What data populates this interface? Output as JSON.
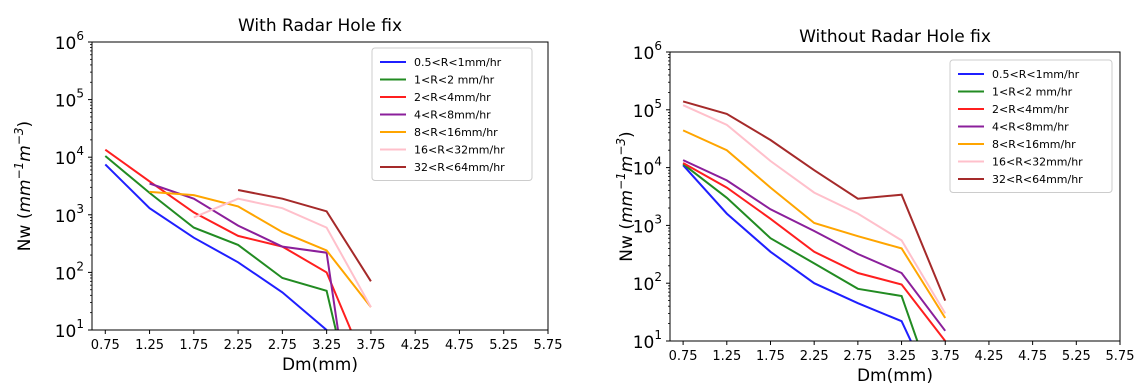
{
  "chart_data": [
    {
      "type": "line",
      "title": "With Radar Hole fix",
      "xlabel": "Dm(mm)",
      "ylabel_prefix": "Nw (",
      "ylabel_math": "mm",
      "ylabel_unit_power": "−1",
      "ylabel_math2": "m",
      "ylabel_unit_power2": "−3",
      "ylabel_suffix": ")",
      "y_scale": "log",
      "xlim": [
        0.6,
        5.75
      ],
      "ylim": [
        10,
        1000000
      ],
      "xticks": [
        "0.75",
        "1.25",
        "1.75",
        "2.25",
        "2.75",
        "3.25",
        "3.75",
        "4.25",
        "4.75",
        "5.25",
        "5.75"
      ],
      "yticks": [
        {
          "base": "10",
          "exp": "1"
        },
        {
          "base": "10",
          "exp": "2"
        },
        {
          "base": "10",
          "exp": "3"
        },
        {
          "base": "10",
          "exp": "4"
        },
        {
          "base": "10",
          "exp": "5"
        },
        {
          "base": "10",
          "exp": "6"
        }
      ],
      "legend_position": "top-right",
      "series": [
        {
          "name": "0.5<R<1mm/hr",
          "color": "#1f1fff",
          "x": [
            0.75,
            1.25,
            1.75,
            2.25,
            2.75,
            3.25,
            3.35
          ],
          "y": [
            7500,
            1300,
            400,
            150,
            45,
            10,
            4
          ]
        },
        {
          "name": "1<R<2 mm/hr",
          "color": "#228b22",
          "x": [
            0.75,
            1.25,
            1.75,
            2.25,
            2.75,
            3.25,
            3.4
          ],
          "y": [
            10500,
            2400,
            600,
            300,
            80,
            48,
            5
          ]
        },
        {
          "name": "2<R<4mm/hr",
          "color": "#ff1f1f",
          "x": [
            0.75,
            1.25,
            1.75,
            2.25,
            2.75,
            3.25,
            3.55
          ],
          "y": [
            13500,
            3800,
            1100,
            430,
            280,
            100,
            8
          ]
        },
        {
          "name": "4<R<8mm/hr",
          "color": "#8b1f9b",
          "x": [
            1.25,
            1.75,
            2.25,
            2.75,
            3.25,
            3.4
          ],
          "y": [
            3500,
            1900,
            650,
            280,
            220,
            6
          ]
        },
        {
          "name": "8<R<16mm/hr",
          "color": "#ffa500",
          "x": [
            1.25,
            1.75,
            2.25,
            2.75,
            3.25,
            3.75
          ],
          "y": [
            2500,
            2200,
            1400,
            500,
            240,
            25
          ]
        },
        {
          "name": "16<R<32mm/hr",
          "color": "#ffc0cb",
          "x": [
            1.75,
            2.25,
            2.75,
            3.25,
            3.75
          ],
          "y": [
            900,
            1900,
            1300,
            600,
            25
          ]
        },
        {
          "name": "32<R<64mm/hr",
          "color": "#a52a2a",
          "x": [
            2.25,
            2.75,
            3.25,
            3.75
          ],
          "y": [
            2700,
            1900,
            1150,
            70
          ]
        }
      ]
    },
    {
      "type": "line",
      "title": "Without Radar Hole fix",
      "xlabel": "Dm(mm)",
      "ylabel_prefix": "Nw (",
      "ylabel_math": "mm",
      "ylabel_unit_power": "−1",
      "ylabel_math2": "m",
      "ylabel_unit_power2": "−3",
      "ylabel_suffix": ")",
      "y_scale": "log",
      "xlim": [
        0.6,
        5.75
      ],
      "ylim": [
        10,
        1000000
      ],
      "xticks": [
        "0.75",
        "1.25",
        "1.75",
        "2.25",
        "2.75",
        "3.25",
        "3.75",
        "4.25",
        "4.75",
        "5.25",
        "5.75"
      ],
      "yticks": [
        {
          "base": "10",
          "exp": "1"
        },
        {
          "base": "10",
          "exp": "2"
        },
        {
          "base": "10",
          "exp": "3"
        },
        {
          "base": "10",
          "exp": "4"
        },
        {
          "base": "10",
          "exp": "5"
        },
        {
          "base": "10",
          "exp": "6"
        }
      ],
      "legend_position": "top-right",
      "series": [
        {
          "name": "0.5<R<1mm/hr",
          "color": "#1f1fff",
          "x": [
            0.75,
            1.25,
            1.75,
            2.25,
            2.75,
            3.25,
            3.45
          ],
          "y": [
            11000,
            1600,
            350,
            100,
            45,
            22,
            5
          ]
        },
        {
          "name": "1<R<2 mm/hr",
          "color": "#228b22",
          "x": [
            0.75,
            1.25,
            1.75,
            2.25,
            2.75,
            3.25,
            3.5
          ],
          "y": [
            11500,
            3000,
            600,
            220,
            80,
            60,
            5
          ]
        },
        {
          "name": "2<R<4mm/hr",
          "color": "#ff1f1f",
          "x": [
            0.75,
            1.25,
            1.75,
            2.25,
            2.75,
            3.25,
            3.75
          ],
          "y": [
            12000,
            4500,
            1300,
            350,
            150,
            95,
            10
          ]
        },
        {
          "name": "4<R<8mm/hr",
          "color": "#8b1f9b",
          "x": [
            0.75,
            1.25,
            1.75,
            2.25,
            2.75,
            3.25,
            3.75
          ],
          "y": [
            13500,
            6000,
            1900,
            800,
            320,
            150,
            15
          ]
        },
        {
          "name": "8<R<16mm/hr",
          "color": "#ffa500",
          "x": [
            0.75,
            1.25,
            1.75,
            2.25,
            2.75,
            3.25,
            3.75
          ],
          "y": [
            44000,
            20000,
            4500,
            1100,
            650,
            400,
            25
          ]
        },
        {
          "name": "16<R<32mm/hr",
          "color": "#ffc0cb",
          "x": [
            0.75,
            1.25,
            1.75,
            2.25,
            2.75,
            3.25,
            3.75
          ],
          "y": [
            120000,
            55000,
            13000,
            3700,
            1600,
            550,
            30
          ]
        },
        {
          "name": "32<R<64mm/hr",
          "color": "#a52a2a",
          "x": [
            0.75,
            1.25,
            1.75,
            2.25,
            2.75,
            3.25,
            3.75
          ],
          "y": [
            140000,
            85000,
            30000,
            9000,
            2900,
            3400,
            50
          ]
        }
      ]
    }
  ]
}
